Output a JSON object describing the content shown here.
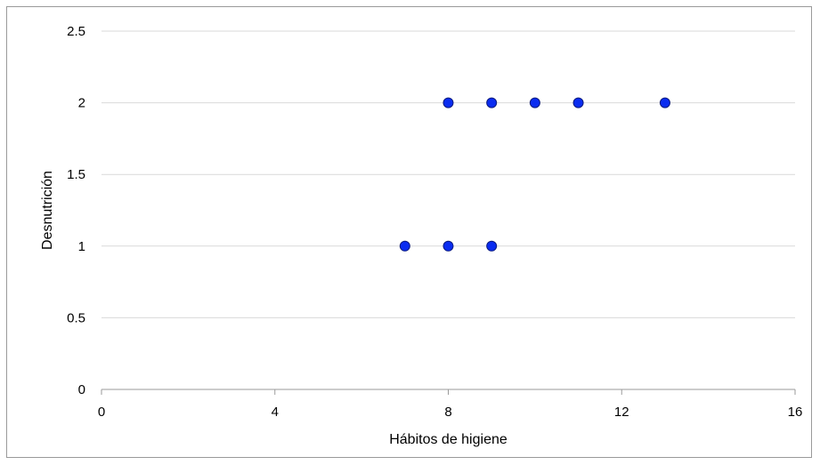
{
  "chart_data": {
    "type": "scatter",
    "title": "",
    "xlabel": "Hábitos de higiene",
    "ylabel": "Desnutrición",
    "xlim": [
      0,
      16
    ],
    "ylim": [
      0,
      2.5
    ],
    "x_ticks": [
      "0",
      "4",
      "8",
      "12",
      "16"
    ],
    "y_ticks": [
      "0",
      "0.5",
      "1",
      "1.5",
      "2",
      "2.5"
    ],
    "grid": "horizontal",
    "legend": "none",
    "marker_color": "#0a2cf0",
    "marker_edge_color": "#0a1a80",
    "series": [
      {
        "points": [
          {
            "x": 7,
            "y": 1
          },
          {
            "x": 8,
            "y": 1
          },
          {
            "x": 9,
            "y": 1
          },
          {
            "x": 8,
            "y": 2
          },
          {
            "x": 9,
            "y": 2
          },
          {
            "x": 10,
            "y": 2
          },
          {
            "x": 11,
            "y": 2
          },
          {
            "x": 13,
            "y": 2
          }
        ]
      }
    ]
  }
}
